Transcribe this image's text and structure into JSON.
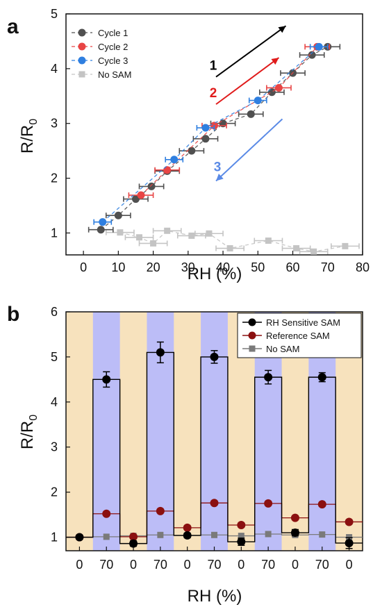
{
  "figure": {
    "colors": {
      "cycle1": "#505050",
      "cycle2": "#e84545",
      "cycle3": "#2f7fe0",
      "nosam_a": "#c4c4c4",
      "rh_sensitive": "#000000",
      "reference": "#8b1010",
      "nosam_b": "#7a7a7a",
      "humid_band": "#bcbdf7",
      "dry_band": "#f7e2bd",
      "arrow1": "#000000",
      "arrow2": "#e01b1b",
      "arrow3": "#5a8ae6"
    }
  },
  "chart_data": [
    {
      "panel": "a",
      "type": "scatter",
      "xlabel": "RH (%)",
      "ylabel": "R/R",
      "ylabel_sub": "0",
      "xlim": [
        -5,
        80
      ],
      "ylim": [
        0.6,
        5
      ],
      "xticks": [
        0,
        10,
        20,
        30,
        40,
        50,
        60,
        70,
        80
      ],
      "yticks": [
        1,
        2,
        3,
        4,
        5
      ],
      "legend_position": "top-left",
      "arrows": [
        {
          "label": "1",
          "color_key": "arrow1",
          "from": [
            38,
            3.85
          ],
          "to": [
            58,
            4.78
          ]
        },
        {
          "label": "2",
          "color_key": "arrow2",
          "from": [
            38,
            3.35
          ],
          "to": [
            56,
            4.2
          ]
        },
        {
          "label": "3",
          "color_key": "arrow3",
          "from": [
            57,
            3.08
          ],
          "to": [
            38,
            1.95
          ]
        }
      ],
      "series": [
        {
          "name": "Cycle 1",
          "color_key": "cycle1",
          "marker": "circle",
          "xerr": 3.5,
          "points": [
            [
              5,
              1.06
            ],
            [
              10,
              1.32
            ],
            [
              15,
              1.62
            ],
            [
              19.5,
              1.85
            ],
            [
              24,
              2.13
            ],
            [
              31,
              2.5
            ],
            [
              35,
              2.72
            ],
            [
              40,
              3.0
            ],
            [
              48,
              3.17
            ],
            [
              54,
              3.57
            ],
            [
              60,
              3.92
            ],
            [
              65.5,
              4.25
            ],
            [
              70,
              4.4
            ]
          ]
        },
        {
          "name": "Cycle 2",
          "color_key": "cycle2",
          "marker": "circle",
          "xerr": 3.5,
          "points": [
            [
              16.5,
              1.69
            ],
            [
              24,
              2.15
            ],
            [
              37.5,
              2.96
            ],
            [
              56,
              3.65
            ],
            [
              67,
              4.4
            ]
          ]
        },
        {
          "name": "Cycle 3",
          "color_key": "cycle3",
          "marker": "circle",
          "xerr": 2.5,
          "points": [
            [
              5.5,
              1.2
            ],
            [
              26,
              2.34
            ],
            [
              35,
              2.92
            ],
            [
              50,
              3.42
            ],
            [
              67.5,
              4.4
            ]
          ]
        },
        {
          "name": "No SAM",
          "color_key": "nosam_a",
          "marker": "square",
          "xerr": 4,
          "points": [
            [
              10.5,
              1.01
            ],
            [
              16,
              0.92
            ],
            [
              20,
              0.81
            ],
            [
              24,
              1.04
            ],
            [
              31,
              0.95
            ],
            [
              36,
              0.99
            ],
            [
              42,
              0.72
            ],
            [
              53,
              0.86
            ],
            [
              61,
              0.72
            ],
            [
              66,
              0.66
            ],
            [
              75,
              0.76
            ]
          ]
        }
      ]
    },
    {
      "panel": "b",
      "type": "line",
      "xlabel": "RH (%)",
      "ylabel": "R/R",
      "ylabel_sub": "0",
      "ylim": [
        0.7,
        6
      ],
      "yticks": [
        1,
        2,
        3,
        4,
        5,
        6
      ],
      "categories": [
        "0",
        "70",
        "0",
        "70",
        "0",
        "70",
        "0",
        "70",
        "0",
        "70",
        "0"
      ],
      "band_humidity": [
        "dry",
        "humid",
        "dry",
        "humid",
        "dry",
        "humid",
        "dry",
        "humid",
        "dry",
        "humid",
        "dry"
      ],
      "legend_position": "top-right",
      "series": [
        {
          "name": "RH Sensitive SAM",
          "color_key": "rh_sensitive",
          "marker": "circle",
          "values": [
            1.0,
            4.5,
            0.86,
            5.1,
            1.04,
            5.0,
            0.9,
            4.55,
            1.1,
            4.55,
            0.87
          ],
          "errors": [
            0.03,
            0.17,
            0.06,
            0.23,
            0.05,
            0.14,
            0.08,
            0.15,
            0.07,
            0.1,
            0.12
          ]
        },
        {
          "name": "Reference SAM",
          "color_key": "reference",
          "marker": "circle",
          "values": [
            1.0,
            1.52,
            1.01,
            1.58,
            1.21,
            1.76,
            1.27,
            1.75,
            1.43,
            1.73,
            1.34
          ],
          "errors": [
            0,
            0,
            0,
            0,
            0,
            0,
            0,
            0,
            0,
            0,
            0
          ]
        },
        {
          "name": "No SAM",
          "color_key": "nosam_b",
          "marker": "square",
          "values": [
            1.0,
            1.01,
            1.03,
            1.05,
            1.04,
            1.05,
            1.03,
            1.07,
            1.05,
            1.06,
            1.0
          ],
          "errors": [
            0,
            0,
            0,
            0,
            0,
            0,
            0,
            0,
            0,
            0,
            0
          ]
        }
      ]
    }
  ]
}
